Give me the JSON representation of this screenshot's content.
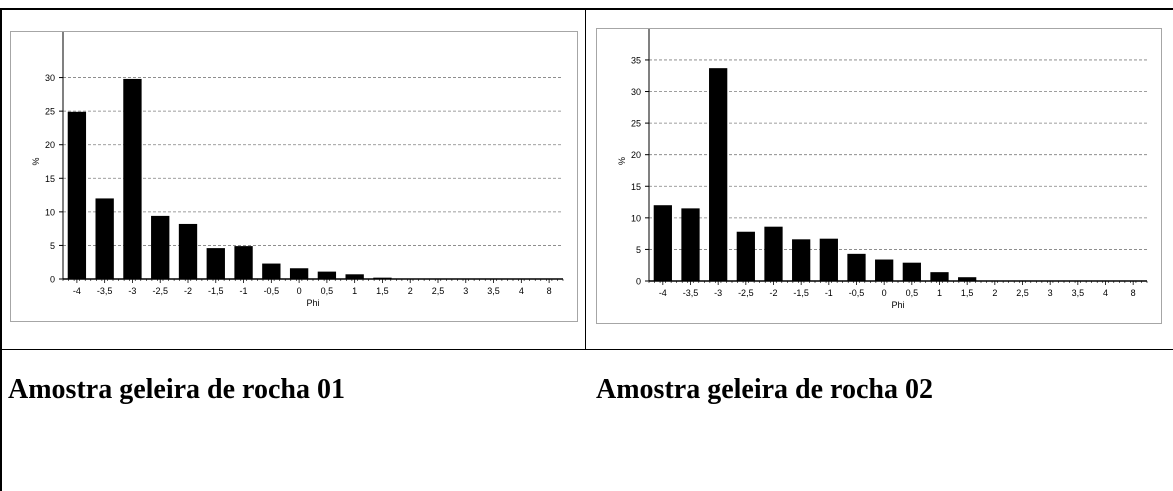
{
  "chart_data": [
    {
      "type": "bar",
      "title": "",
      "xlabel": "Phi",
      "ylabel": "%",
      "categories": [
        "-4",
        "-3,5",
        "-3",
        "-2,5",
        "-2",
        "-1,5",
        "-1",
        "-0,5",
        "0",
        "0,5",
        "1",
        "1,5",
        "2",
        "2,5",
        "3",
        "3,5",
        "4",
        "8"
      ],
      "values": [
        24.9,
        12.0,
        29.8,
        9.4,
        8.2,
        4.6,
        4.9,
        2.3,
        1.6,
        1.1,
        0.7,
        0.2,
        0,
        0,
        0,
        0,
        0,
        0
      ],
      "ylim": [
        0,
        35
      ],
      "yticks": [
        0,
        5,
        10,
        15,
        20,
        25,
        30
      ],
      "grid": true,
      "bar_color": "#000000"
    },
    {
      "type": "bar",
      "title": "",
      "xlabel": "Phi",
      "ylabel": "%",
      "categories": [
        "-4",
        "-3,5",
        "-3",
        "-2,5",
        "-2",
        "-1,5",
        "-1",
        "-0,5",
        "0",
        "0,5",
        "1",
        "1,5",
        "2",
        "2,5",
        "3",
        "3,5",
        "4",
        "8"
      ],
      "values": [
        12.0,
        11.5,
        33.7,
        7.8,
        8.6,
        6.6,
        6.7,
        4.3,
        3.4,
        2.9,
        1.4,
        0.6,
        0,
        0,
        0,
        0,
        0,
        0
      ],
      "ylim": [
        0,
        38
      ],
      "yticks": [
        0,
        5,
        10,
        15,
        20,
        25,
        30,
        35
      ],
      "grid": true,
      "bar_color": "#000000"
    }
  ],
  "captions": {
    "left": "Amostra geleira de rocha 01",
    "right": "Amostra geleira de rocha 02"
  }
}
